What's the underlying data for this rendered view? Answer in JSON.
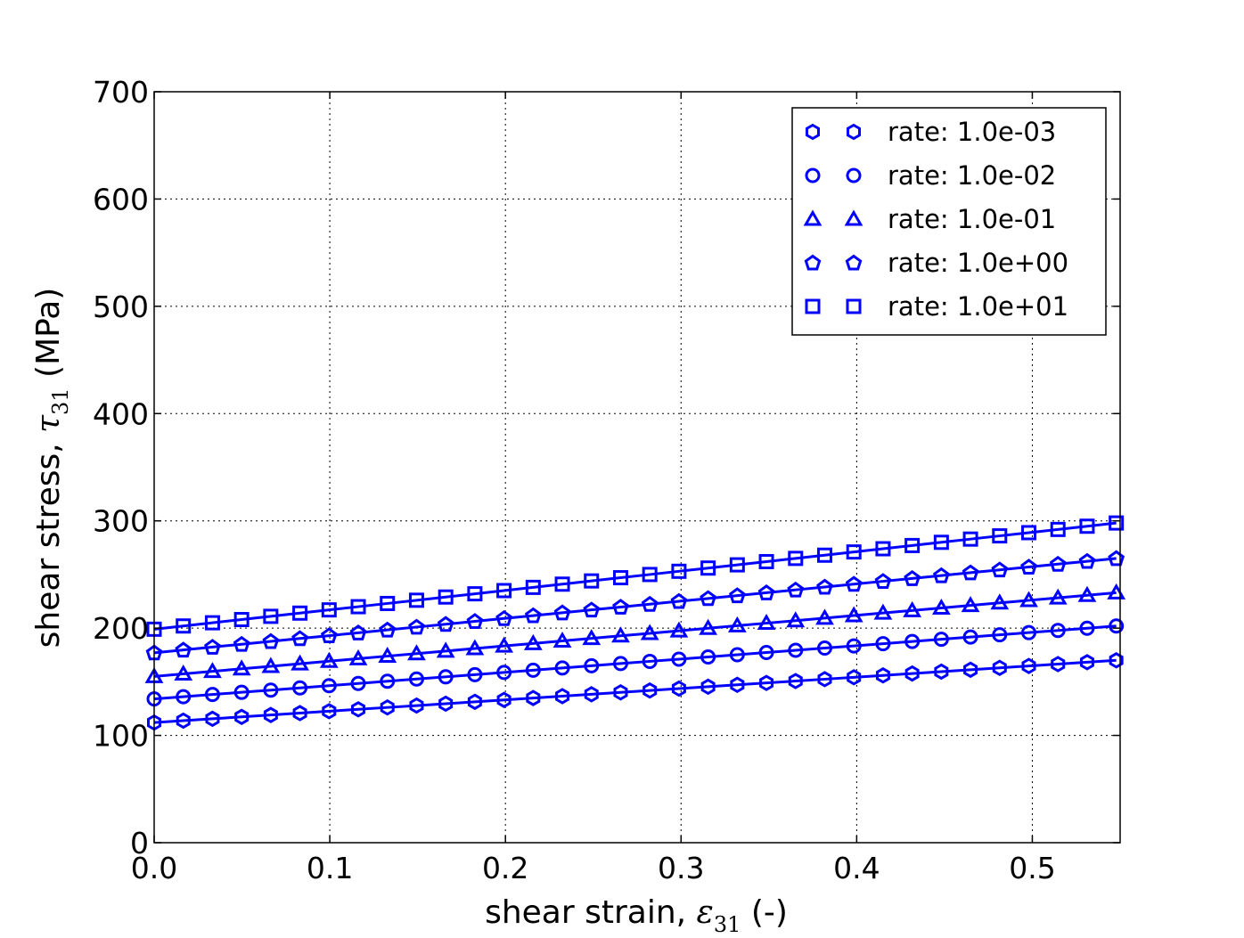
{
  "chart_data": {
    "type": "line",
    "title": "",
    "xlabel": {
      "prefix": "shear strain, ",
      "symbol": "ε",
      "sub": "31",
      "suffix": " (-)"
    },
    "ylabel": {
      "prefix": "shear stress, ",
      "symbol": "τ",
      "sub": "31",
      "suffix": "  (MPa)"
    },
    "xlim": [
      0.0,
      0.55
    ],
    "ylim": [
      0,
      700
    ],
    "xticks": [
      0.0,
      0.1,
      0.2,
      0.3,
      0.4,
      0.5
    ],
    "xtick_labels": [
      "0.0",
      "0.1",
      "0.2",
      "0.3",
      "0.4",
      "0.5"
    ],
    "yticks": [
      0,
      100,
      200,
      300,
      400,
      500,
      600,
      700
    ],
    "ytick_labels": [
      "0",
      "100",
      "200",
      "300",
      "400",
      "500",
      "600",
      "700"
    ],
    "grid": true,
    "legend_position": "top-right",
    "colors": {
      "series": "#0000ff",
      "axes": "#000000",
      "grid": "#000000"
    },
    "x": [
      0.0,
      0.0166,
      0.0332,
      0.0498,
      0.0664,
      0.083,
      0.0996,
      0.1162,
      0.1328,
      0.1494,
      0.166,
      0.1826,
      0.1992,
      0.2158,
      0.2324,
      0.249,
      0.2656,
      0.2822,
      0.2988,
      0.3154,
      0.332,
      0.3486,
      0.3652,
      0.3818,
      0.3984,
      0.415,
      0.4316,
      0.4482,
      0.4648,
      0.4814,
      0.498,
      0.5146,
      0.5312,
      0.5478
    ],
    "series": [
      {
        "name": "rate: 1.0e-03",
        "marker": "hexagon",
        "start": 112,
        "end": 170
      },
      {
        "name": "rate: 1.0e-02",
        "marker": "circle",
        "start": 134,
        "end": 202
      },
      {
        "name": "rate: 1.0e-01",
        "marker": "triangle",
        "start": 155,
        "end": 233
      },
      {
        "name": "rate: 1.0e+00",
        "marker": "pentagon",
        "start": 177,
        "end": 265
      },
      {
        "name": "rate: 1.0e+01",
        "marker": "square",
        "start": 199,
        "end": 298
      }
    ]
  }
}
